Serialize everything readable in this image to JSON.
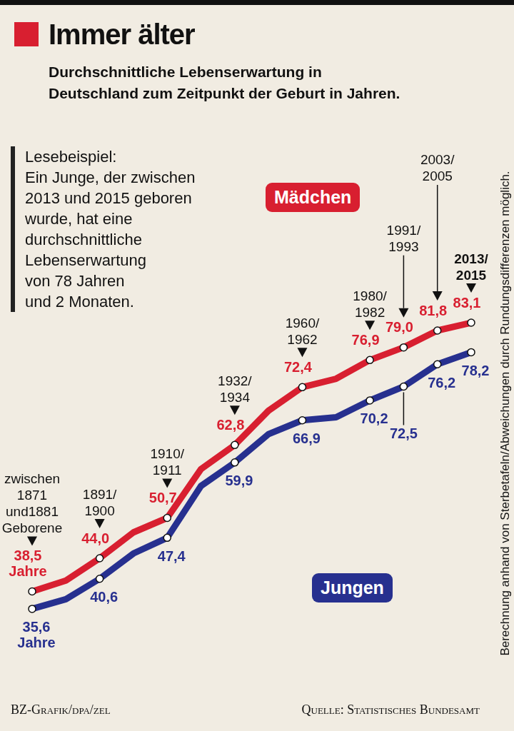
{
  "chart_data": {
    "type": "line",
    "title": "Immer älter",
    "subtitle": "Durchschnittliche Lebenserwartung in\nDeutschland zum Zeitpunkt der Geburt in Jahren.",
    "note": "Lesebeispiel:\nEin Junge, der zwischen\n2013 und 2015 geboren\nwurde, hat eine\ndurchschnittliche\nLebenserwartung\nvon 78 Jahren\nund 2 Monaten.",
    "footnote": "Berechnung anhand von Sterbetafeln/Abweichungen durch Rundungsdifferenzen möglich.",
    "credit": "BZ-Grafik/dpa/zel",
    "source": "Quelle: Statistisches Bundesamt",
    "categories": [
      "zwischen 1871 und1881 Geborene",
      null,
      "1891/1900",
      null,
      "1910/1911",
      null,
      "1932/1934",
      null,
      "1960/1962",
      null,
      "1980/1982",
      "1991/1993",
      "2003/2005",
      "2013/2015"
    ],
    "series": [
      {
        "name": "Mädchen",
        "color": "#d81f30",
        "values": [
          38.5,
          40.3,
          44.0,
          48.3,
          50.7,
          58.8,
          62.8,
          68.5,
          72.4,
          73.8,
          76.9,
          79.0,
          81.8,
          83.1
        ],
        "value_labels": [
          "38,5 Jahre",
          null,
          "44,0",
          null,
          "50,7",
          null,
          "62,8",
          null,
          "72,4",
          null,
          "76,9",
          "79,0",
          "81,8",
          "83,1"
        ]
      },
      {
        "name": "Jungen",
        "color": "#27308f",
        "values": [
          35.6,
          37.2,
          40.6,
          44.8,
          47.4,
          56.0,
          59.9,
          64.6,
          66.9,
          67.4,
          70.2,
          72.5,
          76.2,
          78.2
        ],
        "value_labels": [
          "35,6 Jahre",
          null,
          "40,6",
          null,
          "47,4",
          null,
          "59,9",
          null,
          "66,9",
          null,
          "70,2",
          "72,5",
          "76,2",
          "78,2"
        ]
      }
    ],
    "marker": "circle",
    "line_style": "solid",
    "data_labels": true,
    "tick_labels": false,
    "grid": false
  }
}
